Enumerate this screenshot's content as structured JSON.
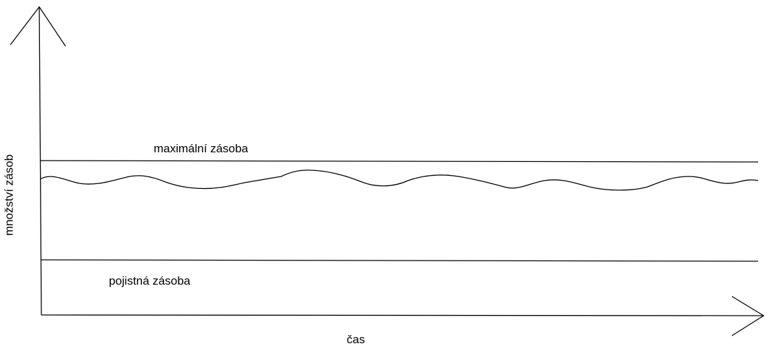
{
  "labels": {
    "max_stock": "maximální zásoba",
    "safety_stock": "pojistná zásoba",
    "x_axis": "čas",
    "y_axis": "množství zásob"
  },
  "colors": {
    "line": "#000000",
    "background": "#ffffff"
  }
}
